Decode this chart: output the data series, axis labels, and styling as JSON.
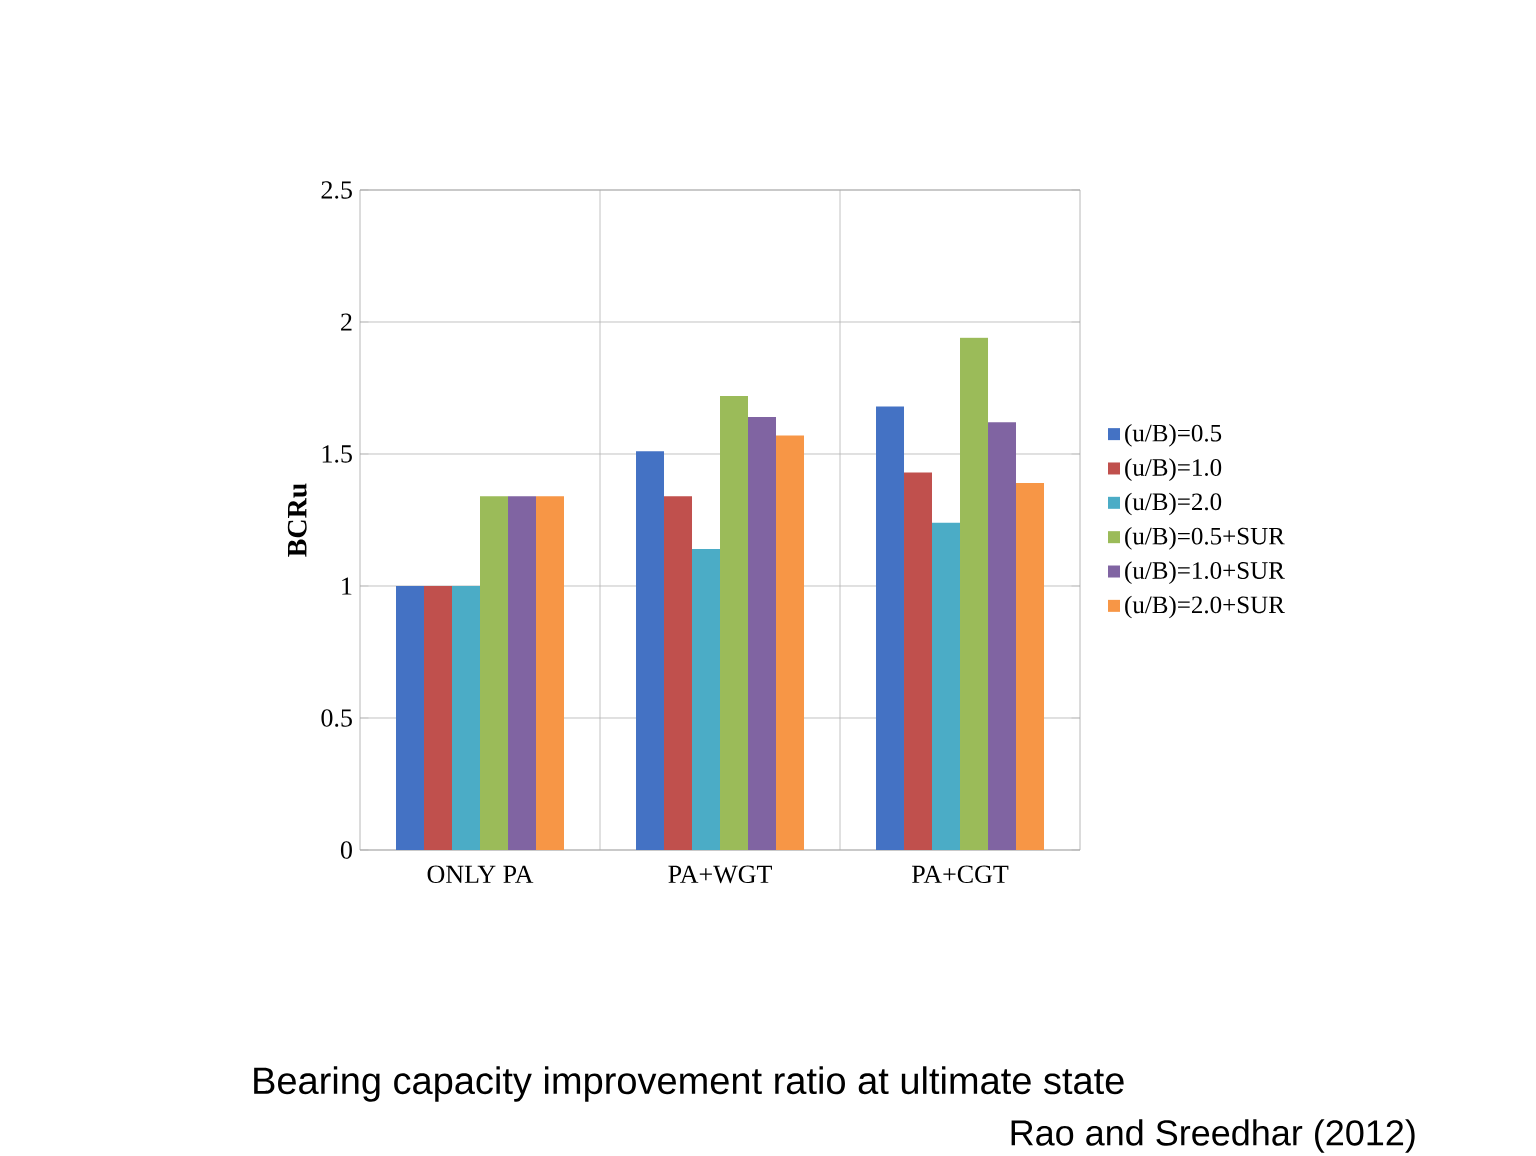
{
  "chart_data": {
    "type": "bar",
    "title": "Bearing capacity improvement ratio at ultimate state",
    "ylabel": "BCRu",
    "annotations": [
      "Rao and Sreedhar (2012)"
    ],
    "categories": [
      "ONLY PA",
      "PA+WGT",
      "PA+CGT"
    ],
    "series": [
      {
        "name": "(u/B)=0.5",
        "color": "#4472c4",
        "values": [
          1.0,
          1.51,
          1.68
        ]
      },
      {
        "name": "(u/B)=1.0",
        "color": "#c0504d",
        "values": [
          1.0,
          1.34,
          1.43
        ]
      },
      {
        "name": "(u/B)=2.0",
        "color": "#4bacc6",
        "values": [
          1.0,
          1.14,
          1.24
        ]
      },
      {
        "name": "(u/B)=0.5+SUR",
        "color": "#9bbb59",
        "values": [
          1.34,
          1.72,
          1.94
        ]
      },
      {
        "name": "(u/B)=1.0+SUR",
        "color": "#8064a2",
        "values": [
          1.34,
          1.64,
          1.62
        ]
      },
      {
        "name": "(u/B)=2.0+SUR",
        "color": "#f79646",
        "values": [
          1.34,
          1.57,
          1.39
        ]
      }
    ],
    "ylim": [
      0,
      2.5
    ],
    "yticks": [
      0,
      0.5,
      1,
      1.5,
      2,
      2.5
    ],
    "grid": true,
    "legend": "right"
  }
}
